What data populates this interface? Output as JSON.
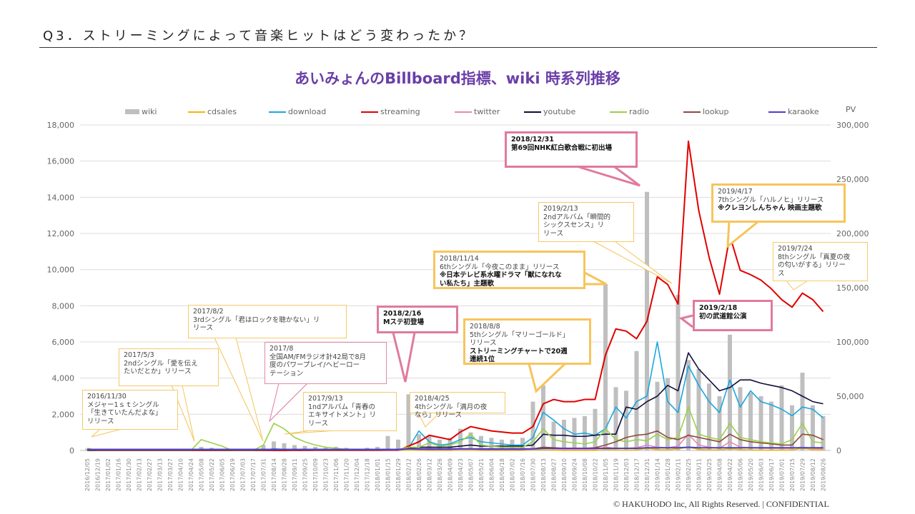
{
  "header": {
    "title": "Q3．ストリーミングによって音楽ヒットはどう変わったか？"
  },
  "footer": "© HAKUHODO Inc, All  Rights  Reserved. | CONFIDENTIAL",
  "chart_data": {
    "type": "bar+line",
    "title": "あいみょんのBillboard指標、wiki 時系列推移",
    "y2label": "PV",
    "ylim": [
      0,
      18000
    ],
    "y2lim": [
      0,
      300000
    ],
    "yticks": [
      "0",
      "2,000",
      "4,000",
      "6,000",
      "8,000",
      "10,000",
      "12,000",
      "14,000",
      "16,000",
      "18,000"
    ],
    "y2ticks": [
      "0",
      "50,000",
      "100,000",
      "150,000",
      "200,000",
      "250,000",
      "300,000"
    ],
    "grid": true,
    "legend": "top",
    "categories": [
      "2016/12/05",
      "2016/12/19",
      "2017/01/02",
      "2017/01/16",
      "2017/01/30",
      "2017/02/13",
      "2017/02/27",
      "2017/03/13",
      "2017/03/27",
      "2017/04/10",
      "2017/04/24",
      "2017/05/08",
      "2017/05/22",
      "2017/06/05",
      "2017/06/19",
      "2017/07/03",
      "2017/07/17",
      "2017/07/31",
      "2017/08/14",
      "2017/08/28",
      "2017/09/11",
      "2017/09/25",
      "2017/10/09",
      "2017/10/23",
      "2017/11/06",
      "2017/11/20",
      "2017/12/04",
      "2017/12/18",
      "2018/01/01",
      "2018/01/15",
      "2018/01/29",
      "2018/02/12",
      "2018/02/26",
      "2018/03/12",
      "2018/03/26",
      "2018/04/09",
      "2018/04/23",
      "2018/05/07",
      "2018/05/21",
      "2018/06/04",
      "2018/06/18",
      "2018/07/02",
      "2018/07/16",
      "2018/07/30",
      "2018/08/13",
      "2018/08/27",
      "2018/09/10",
      "2018/09/24",
      "2018/10/08",
      "2018/10/22",
      "2018/11/05",
      "2018/11/19",
      "2018/12/03",
      "2018/12/17",
      "2018/12/31",
      "2019/01/14",
      "2019/01/28",
      "2019/02/11",
      "2019/02/25",
      "2019/03/11",
      "2019/03/25",
      "2019/04/08",
      "2019/04/22",
      "2019/05/06",
      "2019/05/20",
      "2019/06/03",
      "2019/06/17",
      "2019/07/01",
      "2019/07/15",
      "2019/07/29",
      "2019/08/12",
      "2019/08/26"
    ],
    "series": [
      {
        "name": "wiki",
        "kind": "bar",
        "axis": "left",
        "color": "#bfbfbf",
        "values": [
          100,
          0,
          0,
          0,
          0,
          0,
          0,
          0,
          0,
          0,
          50,
          200,
          150,
          100,
          0,
          0,
          0,
          300,
          500,
          400,
          300,
          250,
          200,
          150,
          200,
          150,
          100,
          150,
          200,
          800,
          600,
          3100,
          900,
          800,
          600,
          700,
          1200,
          1000,
          800,
          700,
          600,
          600,
          700,
          2700,
          3600,
          1600,
          1700,
          1800,
          1900,
          2300,
          9200,
          3500,
          3300,
          5500,
          14300,
          3800,
          4000,
          8600,
          5000,
          4500,
          3700,
          3000,
          6400,
          3500,
          3200,
          3000,
          2700,
          3600,
          2500,
          4300,
          2500,
          1900
        ]
      },
      {
        "name": "cdsales",
        "kind": "line",
        "axis": "right",
        "color": "#f2b800",
        "values": [
          0,
          0,
          0,
          0,
          0,
          0,
          0,
          0,
          0,
          0,
          0,
          500,
          0,
          0,
          0,
          0,
          0,
          500,
          300,
          0,
          0,
          500,
          0,
          0,
          0,
          0,
          0,
          0,
          0,
          0,
          0,
          500,
          300,
          0,
          0,
          0,
          500,
          300,
          0,
          0,
          0,
          0,
          0,
          500,
          800,
          300,
          0,
          0,
          0,
          0,
          1000,
          500,
          300,
          500,
          2000,
          800,
          500,
          1500,
          3000,
          1000,
          500,
          500,
          1500,
          800,
          500,
          300,
          300,
          500,
          500,
          2000,
          800,
          500
        ]
      },
      {
        "name": "download",
        "kind": "line",
        "axis": "right",
        "color": "#1aa7e0",
        "values": [
          0,
          0,
          0,
          0,
          0,
          0,
          0,
          0,
          0,
          0,
          0,
          500,
          300,
          0,
          0,
          0,
          0,
          500,
          1500,
          1000,
          500,
          500,
          300,
          300,
          300,
          300,
          300,
          300,
          300,
          500,
          500,
          2000,
          18000,
          8000,
          5000,
          6000,
          10000,
          12000,
          8000,
          7000,
          6000,
          5000,
          5000,
          12000,
          35000,
          28000,
          20000,
          15000,
          16000,
          14000,
          20000,
          40000,
          30000,
          45000,
          50000,
          100000,
          45000,
          35000,
          78000,
          60000,
          45000,
          35000,
          65000,
          40000,
          55000,
          45000,
          42000,
          38000,
          32000,
          40000,
          38000,
          30000
        ]
      },
      {
        "name": "streaming",
        "kind": "line",
        "axis": "right",
        "color": "#e00000",
        "values": [
          0,
          0,
          0,
          0,
          0,
          0,
          0,
          0,
          0,
          0,
          0,
          0,
          0,
          0,
          0,
          0,
          0,
          0,
          0,
          0,
          0,
          0,
          0,
          0,
          0,
          0,
          0,
          0,
          0,
          0,
          0,
          4000,
          8000,
          14000,
          12000,
          10000,
          17000,
          22000,
          20000,
          18000,
          17000,
          16000,
          16000,
          22000,
          43000,
          47000,
          45000,
          45000,
          47000,
          47000,
          88000,
          112000,
          110000,
          103000,
          119000,
          160000,
          153000,
          135000,
          285000,
          221000,
          178000,
          144000,
          198000,
          166000,
          162000,
          157000,
          149000,
          139000,
          132000,
          145000,
          139000,
          128000
        ]
      },
      {
        "name": "twitter",
        "kind": "line",
        "axis": "right",
        "color": "#e889ad",
        "values": [
          0,
          0,
          0,
          0,
          0,
          0,
          0,
          0,
          0,
          0,
          0,
          500,
          300,
          0,
          0,
          0,
          0,
          500,
          1000,
          500,
          300,
          300,
          0,
          0,
          0,
          0,
          0,
          0,
          0,
          0,
          0,
          1500,
          800,
          500,
          500,
          500,
          1000,
          1000,
          500,
          500,
          500,
          500,
          500,
          1000,
          2000,
          1500,
          1000,
          1000,
          1000,
          1000,
          3000,
          2000,
          2000,
          2500,
          5000,
          3000,
          2500,
          4000,
          15000,
          5000,
          3000,
          2000,
          8000,
          3000,
          2500,
          2000,
          2000,
          2000,
          2000,
          3000,
          2000,
          1500
        ]
      },
      {
        "name": "youtube",
        "kind": "line",
        "axis": "right",
        "color": "#0f0f3d",
        "values": [
          0,
          0,
          0,
          0,
          0,
          0,
          0,
          0,
          0,
          0,
          0,
          500,
          300,
          0,
          0,
          0,
          0,
          500,
          1000,
          800,
          500,
          500,
          500,
          500,
          500,
          500,
          500,
          500,
          500,
          800,
          800,
          2000,
          3000,
          3000,
          3000,
          3000,
          4000,
          5000,
          4000,
          4000,
          4000,
          4000,
          4000,
          5000,
          15000,
          14000,
          14000,
          13000,
          13000,
          14000,
          15000,
          15000,
          40000,
          38000,
          45000,
          50000,
          60000,
          55000,
          90000,
          75000,
          65000,
          55000,
          58000,
          65000,
          65000,
          62000,
          60000,
          58000,
          55000,
          50000,
          45000,
          43000
        ]
      },
      {
        "name": "radio",
        "kind": "line",
        "axis": "right",
        "color": "#9bd14a",
        "values": [
          2000,
          0,
          0,
          0,
          0,
          0,
          0,
          0,
          0,
          0,
          0,
          10000,
          7000,
          4000,
          0,
          0,
          0,
          5000,
          25000,
          20000,
          12000,
          8000,
          5000,
          3000,
          2000,
          1000,
          1000,
          1000,
          1000,
          1000,
          1000,
          3000,
          3000,
          7000,
          4000,
          5000,
          8000,
          15000,
          5000,
          4000,
          3000,
          3000,
          3000,
          8000,
          20000,
          10000,
          8000,
          7000,
          6000,
          8000,
          20000,
          10000,
          8000,
          10000,
          9000,
          15000,
          10000,
          12000,
          40000,
          15000,
          12000,
          10000,
          25000,
          12000,
          10000,
          8000,
          7000,
          6000,
          10000,
          25000,
          8000,
          7000
        ]
      },
      {
        "name": "lookup",
        "kind": "line",
        "axis": "right",
        "color": "#8b4a3c",
        "values": [
          0,
          0,
          0,
          0,
          0,
          0,
          0,
          0,
          0,
          0,
          0,
          0,
          0,
          0,
          0,
          0,
          0,
          0,
          500,
          500,
          300,
          300,
          300,
          300,
          300,
          300,
          300,
          300,
          300,
          500,
          500,
          1500,
          1000,
          1000,
          1000,
          1000,
          1500,
          1500,
          1000,
          1000,
          1000,
          1000,
          1000,
          1500,
          3000,
          2500,
          2000,
          2000,
          2000,
          2500,
          5000,
          8000,
          12000,
          14000,
          15000,
          18000,
          12000,
          10000,
          14000,
          12000,
          10000,
          8000,
          15000,
          10000,
          8000,
          7000,
          6000,
          5000,
          5000,
          15000,
          14000,
          10000
        ]
      },
      {
        "name": "karaoke",
        "kind": "line",
        "axis": "right",
        "color": "#4b3fc8",
        "values": [
          1000,
          1000,
          1000,
          1000,
          1000,
          1000,
          1000,
          1000,
          1000,
          1000,
          1000,
          1000,
          1000,
          1000,
          1000,
          1000,
          1000,
          1000,
          1000,
          1000,
          1000,
          1000,
          1000,
          1000,
          1000,
          1000,
          1000,
          1000,
          1000,
          1000,
          1000,
          1500,
          1500,
          1500,
          1500,
          1500,
          1500,
          1500,
          1500,
          1500,
          1500,
          1500,
          1500,
          1500,
          2000,
          2000,
          2000,
          2000,
          2000,
          2000,
          2000,
          2000,
          2000,
          2000,
          2500,
          2500,
          2500,
          2500,
          3000,
          2500,
          2500,
          2500,
          2500,
          2500,
          2500,
          2500,
          2500,
          2500,
          2500,
          2500,
          2500,
          2500
        ]
      }
    ],
    "annotations": [
      {
        "color": "orange",
        "weight": "thin",
        "lines": [
          {
            "t": "2016/11/30"
          },
          {
            "t": "メジャー1ｓｔシングル"
          },
          {
            "t": "「生きていたんだよな」"
          },
          {
            "t": "リリース"
          }
        ]
      },
      {
        "color": "orange",
        "weight": "thin",
        "lines": [
          {
            "t": "2017/5/3"
          },
          {
            "t": "2ndシングル「愛を伝え"
          },
          {
            "t": "たいだとか」リリース"
          }
        ]
      },
      {
        "color": "orange",
        "weight": "thin",
        "lines": [
          {
            "t": "2017/8/2"
          },
          {
            "t": "3rdシングル「君はロックを聴かない」リ"
          },
          {
            "t": "リース"
          }
        ]
      },
      {
        "color": "pink",
        "weight": "thin",
        "lines": [
          {
            "t": "2017/8"
          },
          {
            "t": "全国AM/FMラジオ計42局で8月"
          },
          {
            "t": "度のパワープレイ/ヘビーロー"
          },
          {
            "t": "テーション"
          }
        ]
      },
      {
        "color": "orange",
        "weight": "thin",
        "lines": [
          {
            "t": "2017/9/13"
          },
          {
            "t": "1ndアルバム「青春の"
          },
          {
            "t": "エキサイトメント」リ"
          },
          {
            "t": "リース"
          }
        ]
      },
      {
        "color": "pink",
        "weight": "thick",
        "lines": [
          {
            "t": "2018/2/16",
            "b": true
          },
          {
            "t": "Mステ初登場",
            "b": true
          }
        ]
      },
      {
        "color": "orange",
        "weight": "thin",
        "lines": [
          {
            "t": "2018/4/25"
          },
          {
            "t": "4thシングル「満月の夜"
          },
          {
            "t": "なら」リリース"
          }
        ]
      },
      {
        "color": "orange",
        "weight": "thick",
        "lines": [
          {
            "t": "2018/11/14"
          },
          {
            "t": "6thシングル「今夜このまま」リリース"
          },
          {
            "t": "※日本テレビ系水曜ドラマ「獣になれな",
            "b": true
          },
          {
            "t": "い私たち」主題歌",
            "b": true
          }
        ]
      },
      {
        "color": "orange",
        "weight": "thick",
        "lines": [
          {
            "t": "2018/8/8"
          },
          {
            "t": "5thシングル「マリーゴールド」"
          },
          {
            "t": "リリース"
          },
          {
            "t": "ストリーミングチャートで20週",
            "b": true
          },
          {
            "t": "連続1位",
            "b": true
          }
        ]
      },
      {
        "color": "pink",
        "weight": "thick",
        "lines": [
          {
            "t": "2018/12/31",
            "b": true
          },
          {
            "t": "第69回NHK紅白歌合戦に初出場",
            "b": true
          }
        ]
      },
      {
        "color": "orange",
        "weight": "thin",
        "lines": [
          {
            "t": "2019/2/13"
          },
          {
            "t": "2ndアルバム「瞬間的"
          },
          {
            "t": "シックスセンス」リ"
          },
          {
            "t": "リース"
          }
        ]
      },
      {
        "color": "pink",
        "weight": "thick",
        "lines": [
          {
            "t": "2019/2/18",
            "b": true
          },
          {
            "t": "初の武道館公演",
            "b": true
          }
        ]
      },
      {
        "color": "orange",
        "weight": "thick",
        "lines": [
          {
            "t": "2019/4/17"
          },
          {
            "t": "7thシングル「ハルノヒ」リリース"
          },
          {
            "t": "※クレヨンしんちゃん 映画主題歌",
            "b": true
          }
        ]
      },
      {
        "color": "orange",
        "weight": "thin",
        "lines": [
          {
            "t": "2019/7/24"
          },
          {
            "t": "8thシングル「真夏の夜"
          },
          {
            "t": "の匂いがする」リリー"
          },
          {
            "t": "ス"
          }
        ]
      }
    ]
  }
}
